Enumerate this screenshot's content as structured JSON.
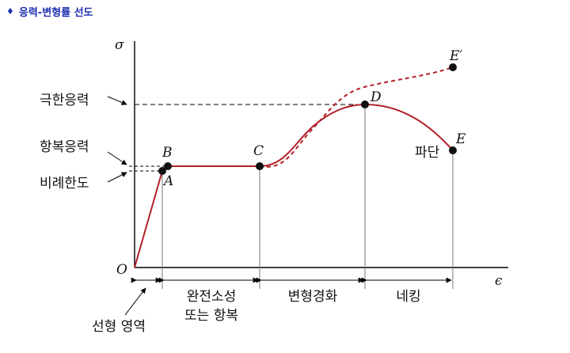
{
  "header": {
    "bullet": "♦",
    "title": "응력-변형률 선도"
  },
  "axes": {
    "y_symbol": "σ",
    "x_symbol": "ϵ",
    "origin": "O"
  },
  "stress_labels": {
    "ultimate": "극한응력",
    "yield": "항복응력",
    "proportional": "비례한도"
  },
  "points": {
    "A": "A",
    "B": "B",
    "C": "C",
    "D": "D",
    "E": "E",
    "E_prime": "E′"
  },
  "fracture_label": "파단",
  "regions": {
    "linear": "선형 영역",
    "perfect_plasticity_line1": "완전소성",
    "perfect_plasticity_line2": "또는 항복",
    "strain_hardening": "변형경화",
    "necking": "네킹"
  },
  "colors": {
    "curve": "#b3202a",
    "axis": "#000000",
    "title": "#1c2fb0"
  }
}
